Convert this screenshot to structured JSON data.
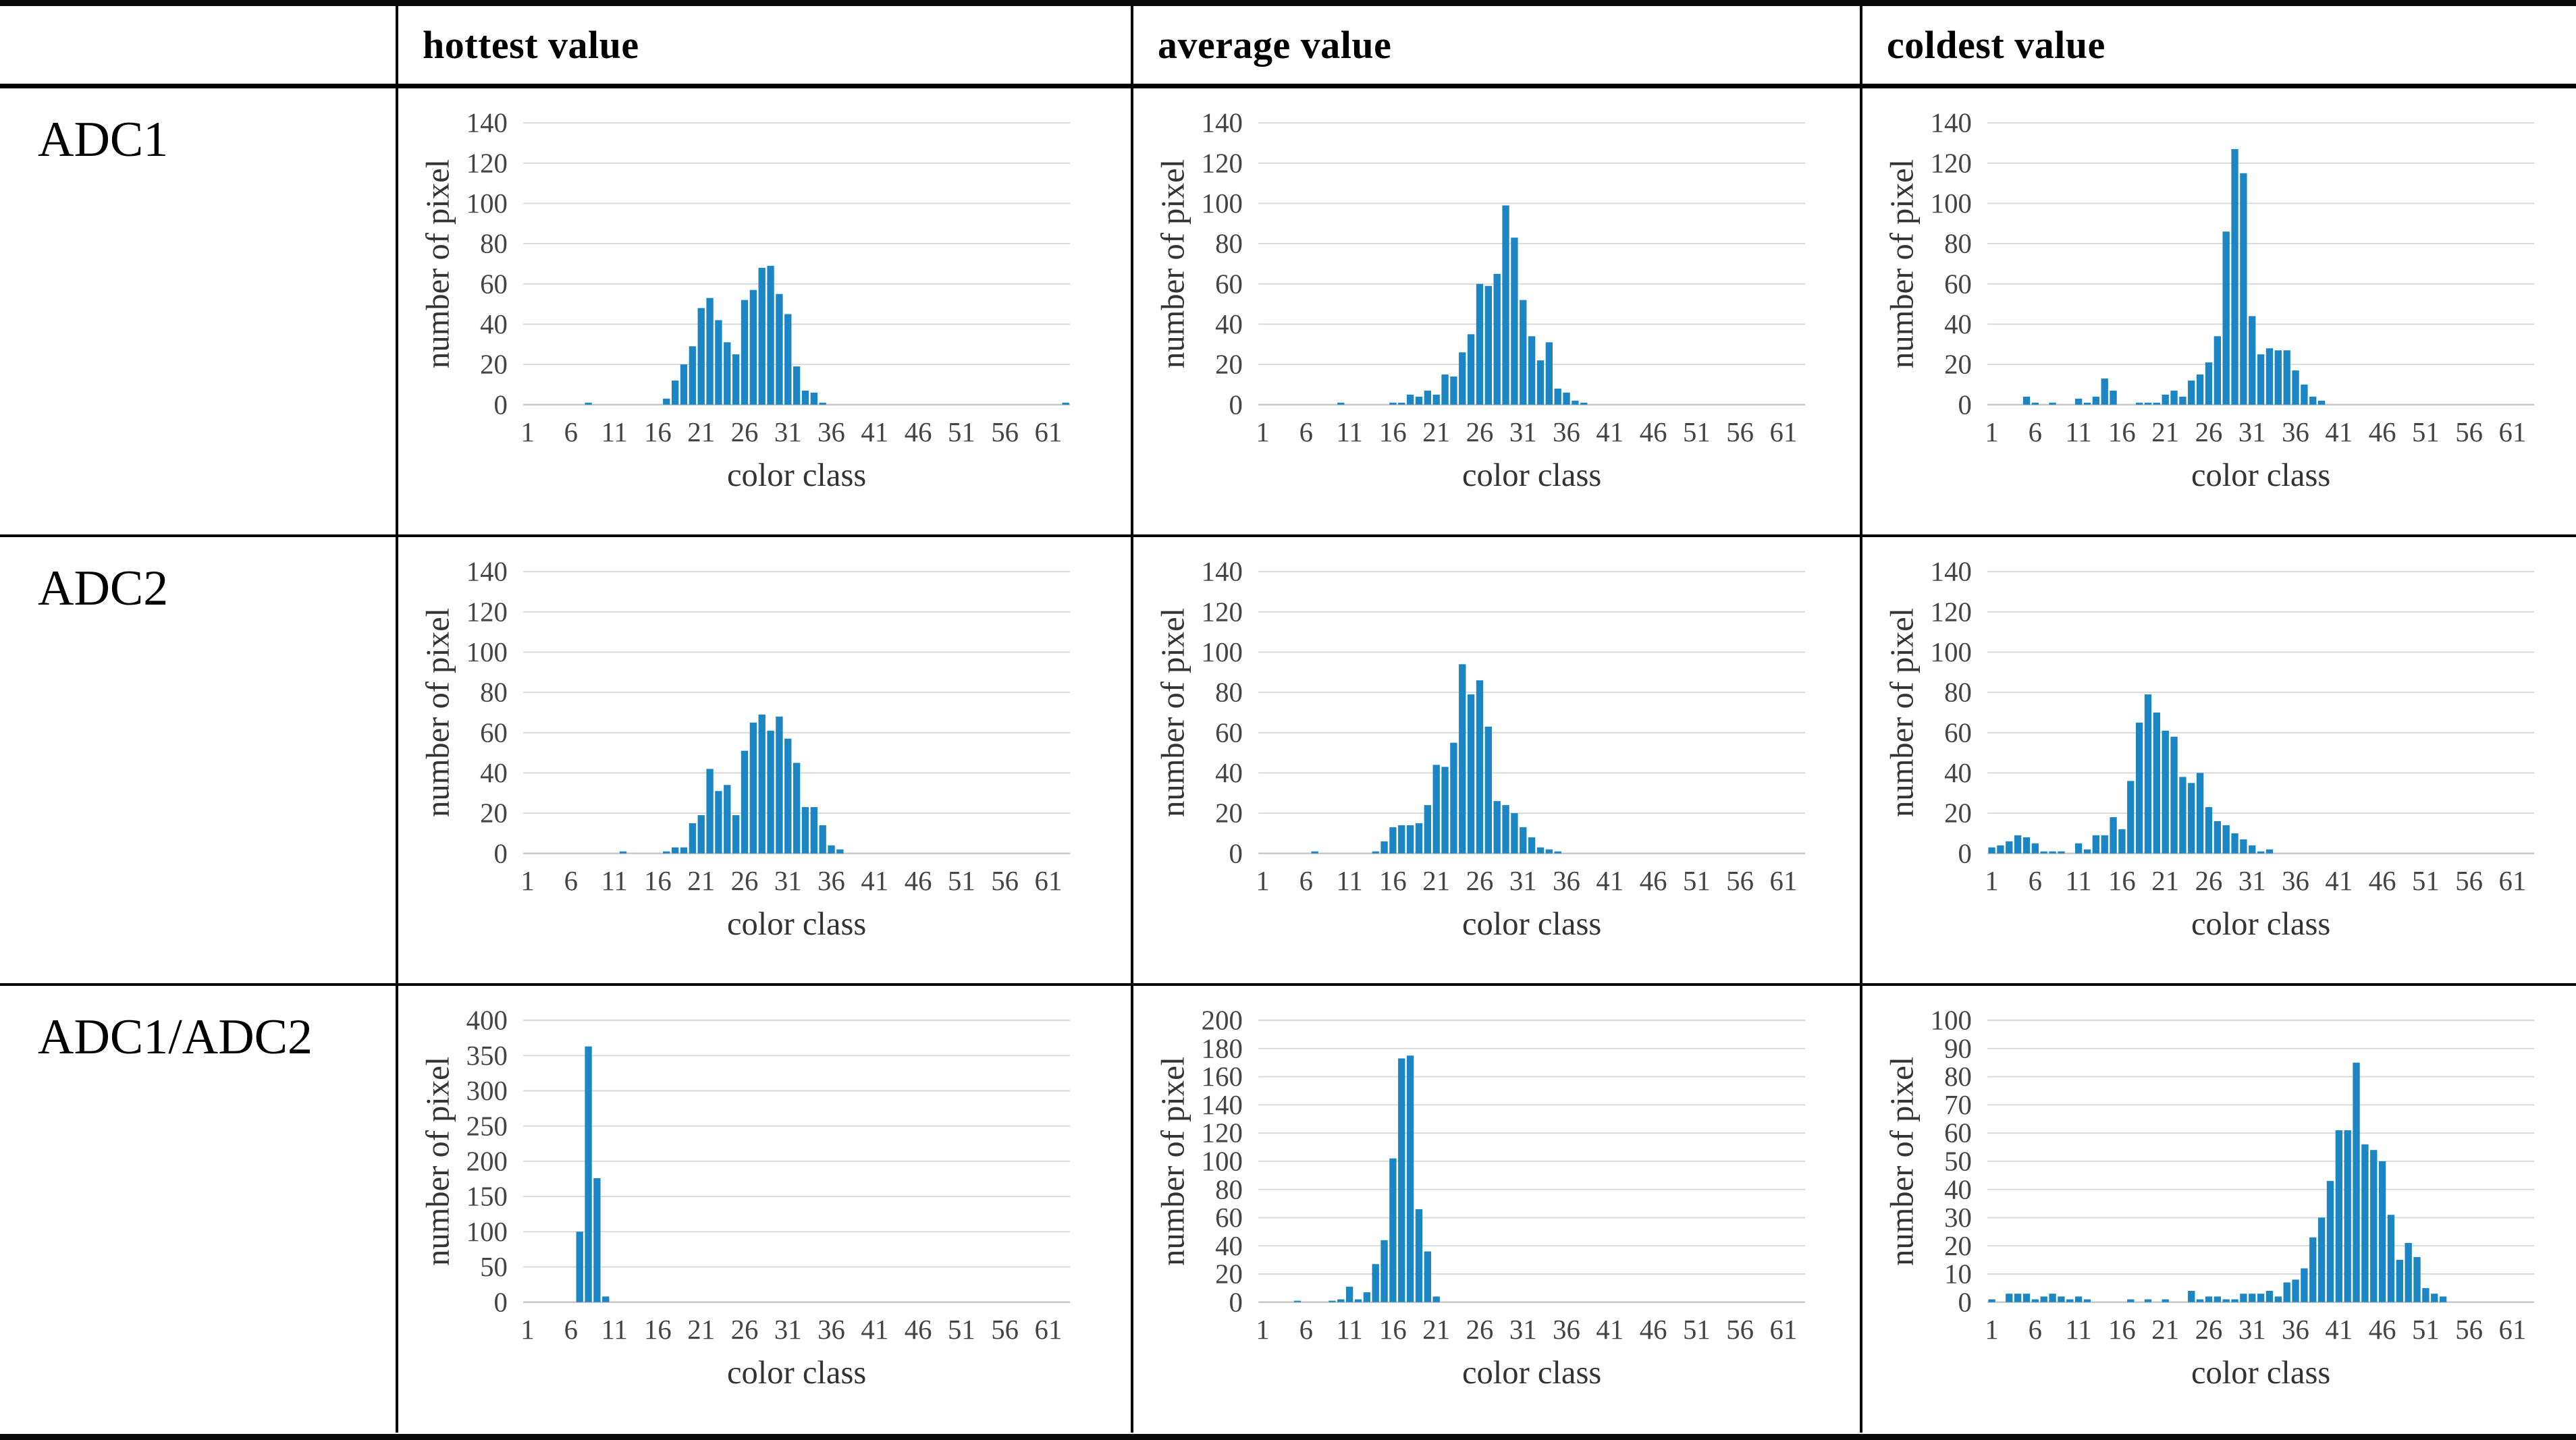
{
  "table": {
    "header": {
      "corner": "",
      "cols": [
        "hottest value",
        "average value",
        "coldest value"
      ]
    },
    "rows": [
      {
        "label": "ADC1"
      },
      {
        "label": "ADC2"
      },
      {
        "label": "ADC1/ADC2"
      }
    ]
  },
  "colors": {
    "bar_fill": "#1b86c3",
    "gridline": "#d9d9d9",
    "zero_line": "#c6c6c6",
    "axis_text": "#444444",
    "title_text": "#333333",
    "table_border": "#000000"
  },
  "chart_data": [
    {
      "type": "bar",
      "row": "ADC1",
      "column": "hottest value",
      "title": "",
      "xlabel": "color class",
      "ylabel": "number of pixel",
      "x_range": [
        1,
        63
      ],
      "xticks": [
        1,
        6,
        11,
        16,
        21,
        26,
        31,
        36,
        41,
        46,
        51,
        56,
        61
      ],
      "ylim": [
        0,
        140
      ],
      "ytick_step": 20,
      "grid": true,
      "legend": "none",
      "values": {
        "8": 1,
        "17": 3,
        "18": 12,
        "19": 20,
        "20": 29,
        "21": 48,
        "22": 53,
        "23": 42,
        "24": 31,
        "25": 25,
        "26": 52,
        "27": 57,
        "28": 68,
        "29": 69,
        "30": 55,
        "31": 45,
        "32": 19,
        "33": 7,
        "34": 6,
        "35": 1,
        "63": 1
      }
    },
    {
      "type": "bar",
      "row": "ADC1",
      "column": "average value",
      "title": "",
      "xlabel": "color class",
      "ylabel": "number of pixel",
      "x_range": [
        1,
        63
      ],
      "xticks": [
        1,
        6,
        11,
        16,
        21,
        26,
        31,
        36,
        41,
        46,
        51,
        56,
        61
      ],
      "ylim": [
        0,
        140
      ],
      "ytick_step": 20,
      "grid": true,
      "legend": "none",
      "values": {
        "10": 1,
        "16": 1,
        "17": 1,
        "18": 5,
        "19": 4,
        "20": 7,
        "21": 5,
        "22": 15,
        "23": 14,
        "24": 26,
        "25": 35,
        "26": 60,
        "27": 59,
        "28": 65,
        "29": 99,
        "30": 83,
        "31": 52,
        "32": 34,
        "33": 22,
        "34": 31,
        "35": 8,
        "36": 6,
        "37": 2,
        "38": 1
      }
    },
    {
      "type": "bar",
      "row": "ADC1",
      "column": "coldest value",
      "title": "",
      "xlabel": "color class",
      "ylabel": "number of pixel",
      "x_range": [
        1,
        63
      ],
      "xticks": [
        1,
        6,
        11,
        16,
        21,
        26,
        31,
        36,
        41,
        46,
        51,
        56,
        61
      ],
      "ylim": [
        0,
        140
      ],
      "ytick_step": 20,
      "grid": true,
      "legend": "none",
      "values": {
        "5": 4,
        "6": 1,
        "8": 1,
        "11": 3,
        "12": 1,
        "13": 4,
        "14": 13,
        "15": 7,
        "18": 1,
        "19": 1,
        "20": 1,
        "21": 5,
        "22": 7,
        "23": 4,
        "24": 12,
        "25": 15,
        "26": 21,
        "27": 34,
        "28": 86,
        "29": 127,
        "30": 115,
        "31": 44,
        "32": 25,
        "33": 28,
        "34": 27,
        "35": 27,
        "36": 17,
        "37": 10,
        "38": 4,
        "39": 2
      }
    },
    {
      "type": "bar",
      "row": "ADC2",
      "column": "hottest value",
      "title": "",
      "xlabel": "color class",
      "ylabel": "number of pixel",
      "x_range": [
        1,
        63
      ],
      "xticks": [
        1,
        6,
        11,
        16,
        21,
        26,
        31,
        36,
        41,
        46,
        51,
        56,
        61
      ],
      "ylim": [
        0,
        140
      ],
      "ytick_step": 20,
      "grid": true,
      "legend": "none",
      "values": {
        "12": 1,
        "17": 1,
        "18": 3,
        "19": 3,
        "20": 15,
        "21": 19,
        "22": 42,
        "23": 31,
        "24": 34,
        "25": 19,
        "26": 51,
        "27": 65,
        "28": 69,
        "29": 61,
        "30": 68,
        "31": 57,
        "32": 45,
        "33": 23,
        "34": 23,
        "35": 14,
        "36": 4,
        "37": 2
      }
    },
    {
      "type": "bar",
      "row": "ADC2",
      "column": "average value",
      "title": "",
      "xlabel": "color class",
      "ylabel": "number of pixel",
      "x_range": [
        1,
        63
      ],
      "xticks": [
        1,
        6,
        11,
        16,
        21,
        26,
        31,
        36,
        41,
        46,
        51,
        56,
        61
      ],
      "ylim": [
        0,
        140
      ],
      "ytick_step": 20,
      "grid": true,
      "legend": "none",
      "values": {
        "7": 1,
        "14": 1,
        "15": 6,
        "16": 13,
        "17": 14,
        "18": 14,
        "19": 15,
        "20": 24,
        "21": 44,
        "22": 43,
        "23": 55,
        "24": 94,
        "25": 79,
        "26": 86,
        "27": 63,
        "28": 26,
        "29": 24,
        "30": 20,
        "31": 13,
        "32": 8,
        "33": 3,
        "34": 2,
        "35": 1
      }
    },
    {
      "type": "bar",
      "row": "ADC2",
      "column": "coldest value",
      "title": "",
      "xlabel": "color class",
      "ylabel": "number of pixel",
      "x_range": [
        1,
        63
      ],
      "xticks": [
        1,
        6,
        11,
        16,
        21,
        26,
        31,
        36,
        41,
        46,
        51,
        56,
        61
      ],
      "ylim": [
        0,
        140
      ],
      "ytick_step": 20,
      "grid": true,
      "legend": "none",
      "values": {
        "1": 3,
        "2": 4,
        "3": 6,
        "4": 9,
        "5": 8,
        "6": 5,
        "7": 1,
        "8": 1,
        "9": 1,
        "11": 5,
        "12": 2,
        "13": 9,
        "14": 9,
        "15": 18,
        "16": 12,
        "17": 36,
        "18": 65,
        "19": 79,
        "20": 70,
        "21": 61,
        "22": 58,
        "23": 38,
        "24": 35,
        "25": 40,
        "26": 23,
        "27": 16,
        "28": 14,
        "29": 10,
        "30": 7,
        "31": 4,
        "32": 1,
        "33": 2
      }
    },
    {
      "type": "bar",
      "row": "ADC1/ADC2",
      "column": "hottest value",
      "title": "",
      "xlabel": "color class",
      "ylabel": "number of pixel",
      "x_range": [
        1,
        63
      ],
      "xticks": [
        1,
        6,
        11,
        16,
        21,
        26,
        31,
        36,
        41,
        46,
        51,
        56,
        61
      ],
      "ylim": [
        0,
        400
      ],
      "ytick_step": 50,
      "grid": true,
      "legend": "none",
      "values": {
        "7": 100,
        "8": 363,
        "9": 176,
        "10": 8
      }
    },
    {
      "type": "bar",
      "row": "ADC1/ADC2",
      "column": "average value",
      "title": "",
      "xlabel": "color class",
      "ylabel": "number of pixel",
      "x_range": [
        1,
        63
      ],
      "xticks": [
        1,
        6,
        11,
        16,
        21,
        26,
        31,
        36,
        41,
        46,
        51,
        56,
        61
      ],
      "ylim": [
        0,
        200
      ],
      "ytick_step": 20,
      "grid": true,
      "legend": "none",
      "values": {
        "5": 1,
        "9": 1,
        "10": 2,
        "11": 11,
        "12": 2,
        "13": 7,
        "14": 27,
        "15": 44,
        "16": 102,
        "17": 173,
        "18": 175,
        "19": 66,
        "20": 36,
        "21": 4
      }
    },
    {
      "type": "bar",
      "row": "ADC1/ADC2",
      "column": "coldest value",
      "title": "",
      "xlabel": "color class",
      "ylabel": "number of pixel",
      "x_range": [
        1,
        63
      ],
      "xticks": [
        1,
        6,
        11,
        16,
        21,
        26,
        31,
        36,
        41,
        46,
        51,
        56,
        61
      ],
      "ylim": [
        0,
        100
      ],
      "ytick_step": 10,
      "grid": true,
      "legend": "none",
      "values": {
        "1": 1,
        "3": 3,
        "4": 3,
        "5": 3,
        "6": 1,
        "7": 2,
        "8": 3,
        "9": 2,
        "10": 1,
        "11": 2,
        "12": 1,
        "17": 1,
        "19": 1,
        "21": 1,
        "24": 4,
        "25": 1,
        "26": 2,
        "27": 2,
        "28": 1,
        "29": 1,
        "30": 3,
        "31": 3,
        "32": 3,
        "33": 4,
        "34": 2,
        "35": 7,
        "36": 8,
        "37": 12,
        "38": 23,
        "39": 30,
        "40": 43,
        "41": 61,
        "42": 61,
        "43": 85,
        "44": 56,
        "45": 54,
        "46": 50,
        "47": 31,
        "48": 15,
        "49": 21,
        "50": 16,
        "51": 5,
        "52": 3,
        "53": 2
      }
    }
  ]
}
